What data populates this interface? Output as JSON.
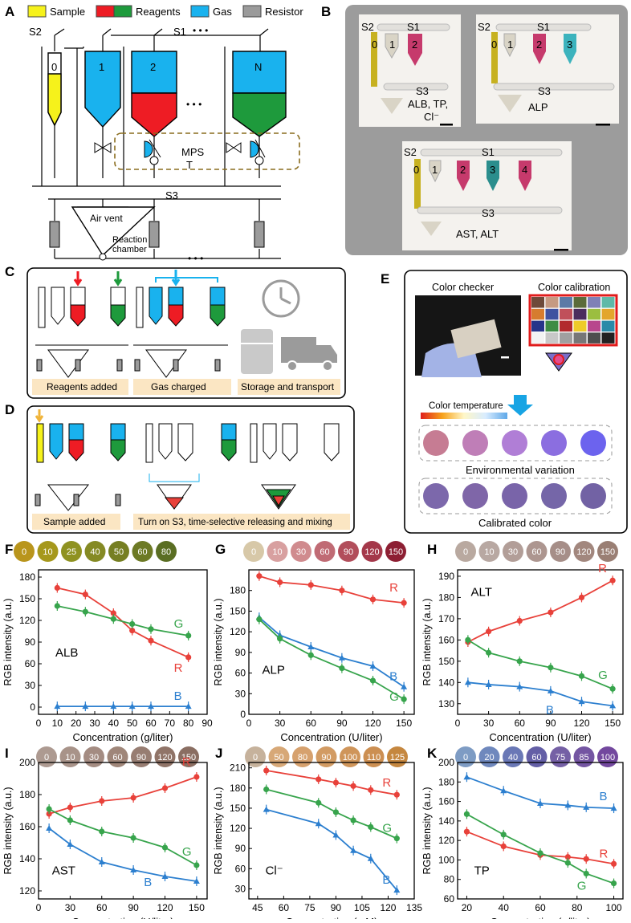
{
  "panel_labels": [
    "A",
    "B",
    "C",
    "D",
    "E",
    "F",
    "G",
    "H",
    "I",
    "J",
    "K"
  ],
  "legend_a": [
    {
      "label": "Sample",
      "colors": [
        "#f6f21b"
      ]
    },
    {
      "label": "Reagents",
      "colors": [
        "#ee1c24",
        "#1e9a3c"
      ]
    },
    {
      "label": "Gas",
      "colors": [
        "#19b2ee"
      ]
    },
    {
      "label": "Resistor",
      "colors": [
        "#9b9b9b"
      ]
    }
  ],
  "diagram_a": {
    "switch_s1": "S1",
    "switch_s2": "S2",
    "switch_s3": "S3",
    "tank_labels": [
      "0",
      "1",
      "2",
      "N"
    ],
    "mps_label": "MPS",
    "t_label": "T",
    "air_vent": "Air vent",
    "reaction_chamber": "Reaction\nchamber",
    "dots": "• • •"
  },
  "photo_b": {
    "card1": {
      "s1": "S1",
      "s2": "S2",
      "s3": "S3",
      "tubes": [
        "0",
        "1",
        "2"
      ],
      "caption_lines": [
        "ALB, TP,",
        "Cl⁻"
      ]
    },
    "card2": {
      "s1": "S1",
      "s2": "S2",
      "s3": "S3",
      "tubes": [
        "0",
        "1",
        "2",
        "3"
      ],
      "caption": "ALP"
    },
    "card3": {
      "s1": "S1",
      "s2": "S2",
      "s3": "S3",
      "tubes": [
        "0",
        "1",
        "2",
        "3",
        "4"
      ],
      "caption": "AST, ALT"
    }
  },
  "panel_c": {
    "steps": [
      "Reagents added",
      "Gas charged",
      "Storage and transport"
    ]
  },
  "panel_d": {
    "steps": [
      "Sample added",
      "Turn on S3, time-selective releasing and mixing"
    ]
  },
  "panel_e": {
    "color_checker": "Color checker",
    "color_calibration": "Color calibration",
    "color_temperature": "Color temperature",
    "environmental_variation": "Environmental variation",
    "calibrated_color": "Calibrated color",
    "env_colors": [
      "#c67c93",
      "#bf7eb7",
      "#b07ed6",
      "#8b6ee0",
      "#6c63ee"
    ],
    "cal_colors": [
      "#7c68ab",
      "#7f66a8",
      "#7964a9",
      "#7566a8",
      "#7262a4"
    ]
  },
  "chart_data": [
    {
      "panel": "F",
      "type": "line",
      "analyte": "ALB",
      "swatches": [
        "0",
        "10",
        "25",
        "40",
        "50",
        "60",
        "80"
      ],
      "swatch_colors": [
        "#b9951c",
        "#a6981c",
        "#8f9221",
        "#858a24",
        "#767f22",
        "#6d7a25",
        "#5a6e23"
      ],
      "x": [
        10,
        25,
        40,
        50,
        60,
        80
      ],
      "series": [
        {
          "name": "R",
          "color": "#e8413a",
          "values": [
            165,
            156,
            130,
            106,
            92,
            69
          ]
        },
        {
          "name": "G",
          "color": "#37a44c",
          "values": [
            140,
            132,
            122,
            115,
            108,
            99
          ]
        },
        {
          "name": "B",
          "color": "#2c7fcf",
          "values": [
            1,
            1,
            1,
            1,
            1,
            1
          ]
        }
      ],
      "xlabel": "Concentration (g/liter)",
      "ylabel": "RGB intensity (a.u.)",
      "xlim": [
        0,
        90
      ],
      "ylim": [
        -10,
        190
      ],
      "xticks": [
        0,
        10,
        20,
        30,
        40,
        50,
        60,
        70,
        80,
        90
      ],
      "yticks": [
        0,
        30,
        60,
        90,
        120,
        150,
        180
      ]
    },
    {
      "panel": "G",
      "type": "line",
      "analyte": "ALP",
      "swatches": [
        "0",
        "10",
        "30",
        "60",
        "90",
        "120",
        "150"
      ],
      "swatch_colors": [
        "#d7c8a8",
        "#d8a0a0",
        "#d08b8e",
        "#c06b74",
        "#b24e5b",
        "#a4384a",
        "#8d1f33"
      ],
      "x": [
        10,
        30,
        60,
        90,
        120,
        150
      ],
      "series": [
        {
          "name": "R",
          "color": "#e8413a",
          "values": [
            201,
            192,
            188,
            180,
            167,
            162
          ]
        },
        {
          "name": "B",
          "color": "#2c7fcf",
          "values": [
            141,
            115,
            98,
            82,
            70,
            40
          ]
        },
        {
          "name": "G",
          "color": "#37a44c",
          "values": [
            138,
            110,
            86,
            67,
            49,
            22
          ]
        }
      ],
      "xlabel": "Concentration (U/liter)",
      "ylabel": "RGB intensity (a.u.)",
      "xlim": [
        0,
        160
      ],
      "ylim": [
        0,
        210
      ],
      "xticks": [
        0,
        30,
        60,
        90,
        120,
        150
      ],
      "yticks": [
        0,
        30,
        60,
        90,
        120,
        150,
        180
      ]
    },
    {
      "panel": "H",
      "type": "line",
      "analyte": "ALT",
      "swatches": [
        "0",
        "10",
        "30",
        "60",
        "90",
        "120",
        "150"
      ],
      "swatch_colors": [
        "#b9a9a0",
        "#b8a8a2",
        "#b29e98",
        "#ad9690",
        "#a68e88",
        "#a2877e",
        "#9a7f74"
      ],
      "x": [
        10,
        30,
        60,
        90,
        120,
        150
      ],
      "series": [
        {
          "name": "R",
          "color": "#e8413a",
          "values": [
            159,
            164,
            169,
            173,
            180,
            188
          ]
        },
        {
          "name": "G",
          "color": "#37a44c",
          "values": [
            160,
            154,
            150,
            147,
            143,
            137
          ]
        },
        {
          "name": "B",
          "color": "#2c7fcf",
          "values": [
            140,
            139,
            138,
            136,
            131,
            129
          ]
        }
      ],
      "xlabel": "Concentration (U/liter)",
      "ylabel": "RGB intensity (a.u.)",
      "xlim": [
        0,
        160
      ],
      "ylim": [
        125,
        193
      ],
      "xticks": [
        0,
        30,
        60,
        90,
        120,
        150
      ],
      "yticks": [
        130,
        140,
        150,
        160,
        170,
        180,
        190
      ]
    },
    {
      "panel": "I",
      "type": "line",
      "analyte": "AST",
      "swatches": [
        "0",
        "10",
        "30",
        "60",
        "90",
        "120",
        "150"
      ],
      "swatch_colors": [
        "#ad9a91",
        "#a89389",
        "#a48c82",
        "#9f8679",
        "#977d72",
        "#907468",
        "#8a6e62"
      ],
      "x": [
        10,
        30,
        60,
        90,
        120,
        150
      ],
      "series": [
        {
          "name": "R",
          "color": "#e8413a",
          "values": [
            168,
            172,
            176,
            178,
            184,
            191
          ]
        },
        {
          "name": "G",
          "color": "#37a44c",
          "values": [
            171,
            164,
            157,
            153,
            147,
            136
          ]
        },
        {
          "name": "B",
          "color": "#2c7fcf",
          "values": [
            159,
            149,
            138,
            133,
            129,
            126
          ]
        }
      ],
      "xlabel": "Concentration (U/liter)",
      "ylabel": "RGB intensity (a.u.)",
      "xlim": [
        0,
        160
      ],
      "ylim": [
        115,
        200
      ],
      "xticks": [
        0,
        30,
        60,
        90,
        120,
        150
      ],
      "yticks": [
        120,
        140,
        160,
        180,
        200
      ]
    },
    {
      "panel": "J",
      "type": "line",
      "analyte": "Cl⁻",
      "swatches": [
        "0",
        "50",
        "80",
        "90",
        "100",
        "110",
        "125"
      ],
      "swatch_colors": [
        "#c6b29c",
        "#d7a877",
        "#d6a16e",
        "#d29b63",
        "#cf955a",
        "#cc8f52",
        "#c5873f"
      ],
      "x": [
        50,
        80,
        90,
        100,
        110,
        125
      ],
      "series": [
        {
          "name": "R",
          "color": "#e8413a",
          "values": [
            206,
            193,
            188,
            183,
            177,
            170
          ]
        },
        {
          "name": "G",
          "color": "#37a44c",
          "values": [
            178,
            158,
            144,
            132,
            122,
            105
          ]
        },
        {
          "name": "B",
          "color": "#2c7fcf",
          "values": [
            148,
            127,
            110,
            87,
            75,
            28
          ]
        }
      ],
      "xlabel": "Concentration (mM)",
      "ylabel": "RGB intensity (a.u.)",
      "xlim": [
        40,
        135
      ],
      "ylim": [
        15,
        218
      ],
      "xticks": [
        45,
        60,
        75,
        90,
        105,
        120,
        135
      ],
      "yticks": [
        30,
        60,
        90,
        120,
        150,
        180,
        210
      ]
    },
    {
      "panel": "K",
      "type": "line",
      "analyte": "TP",
      "swatches": [
        "0",
        "20",
        "40",
        "60",
        "75",
        "85",
        "100"
      ],
      "swatch_colors": [
        "#7e9cc4",
        "#6f88bd",
        "#6a78b6",
        "#645fa6",
        "#7560a5",
        "#7455a2",
        "#73489e"
      ],
      "x": [
        20,
        40,
        60,
        75,
        85,
        100
      ],
      "series": [
        {
          "name": "B",
          "color": "#2c7fcf",
          "values": [
            185,
            171,
            158,
            156,
            154,
            153
          ]
        },
        {
          "name": "R",
          "color": "#e8413a",
          "values": [
            129,
            114,
            105,
            103,
            101,
            96
          ]
        },
        {
          "name": "G",
          "color": "#37a44c",
          "values": [
            147,
            126,
            107,
            97,
            86,
            76
          ]
        }
      ],
      "xlabel": "Concentration (g/liter)",
      "ylabel": "RGB intensity (a.u.)",
      "xlim": [
        15,
        105
      ],
      "ylim": [
        60,
        200
      ],
      "xticks": [
        20,
        40,
        60,
        80,
        100
      ],
      "yticks": [
        60,
        80,
        100,
        120,
        140,
        160,
        180,
        200
      ]
    }
  ]
}
